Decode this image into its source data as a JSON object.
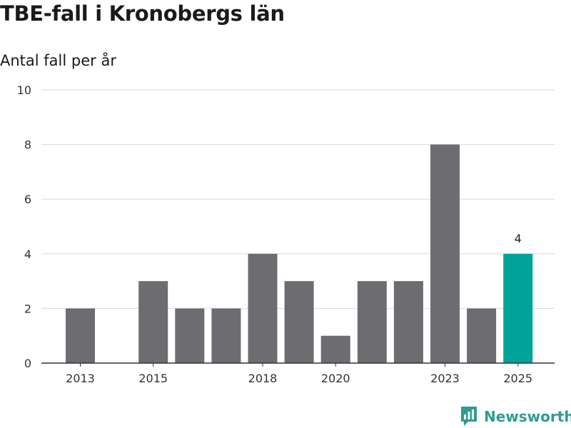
{
  "header": {
    "title": "TBE-fall i Kronobergs län",
    "subtitle": "Antal fall per år"
  },
  "brand": {
    "name": "Newsworthy"
  },
  "colors": {
    "bar": "#6d6c71",
    "highlight": "#00a498",
    "grid": "#d9d9d9",
    "axis": "#333333",
    "brand": "#2f9c8f"
  },
  "chart_data": {
    "type": "bar",
    "title": "TBE-fall i Kronobergs län",
    "subtitle": "Antal fall per år",
    "xlabel": "",
    "ylabel": "",
    "categories": [
      "2013",
      "2014",
      "2015",
      "2016",
      "2017",
      "2018",
      "2019",
      "2020",
      "2021",
      "2022",
      "2023",
      "2024",
      "2025"
    ],
    "values": [
      2,
      0,
      3,
      2,
      2,
      4,
      3,
      1,
      3,
      3,
      8,
      2,
      4
    ],
    "highlight_index": 12,
    "data_labels": [
      {
        "index": 12,
        "text": "4"
      }
    ],
    "x_tick_labels": [
      "2013",
      "2015",
      "2018",
      "2020",
      "2023",
      "2025"
    ],
    "y_ticks": [
      0,
      2,
      4,
      6,
      8,
      10
    ],
    "ylim": [
      0,
      10
    ],
    "grid": true,
    "legend": "none"
  }
}
